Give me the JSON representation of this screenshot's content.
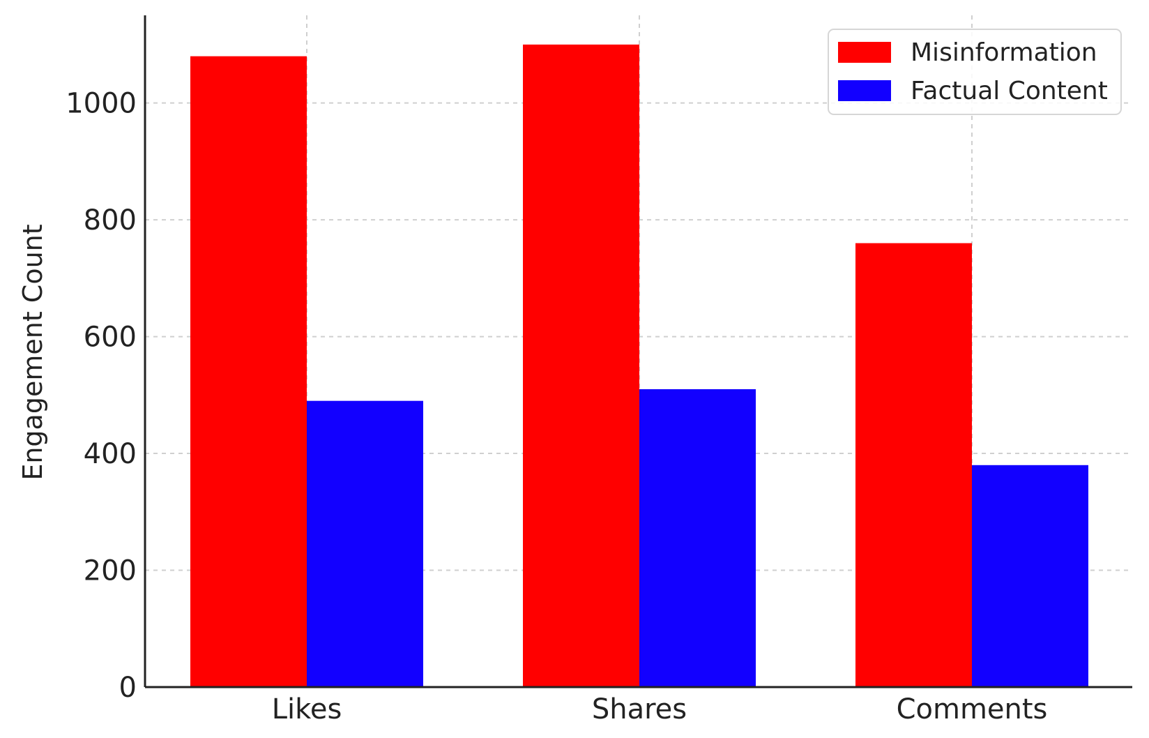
{
  "chart_data": {
    "type": "bar",
    "categories": [
      "Likes",
      "Shares",
      "Comments"
    ],
    "series": [
      {
        "name": "Misinformation",
        "values": [
          1080,
          1100,
          760
        ],
        "color": "#ff0000"
      },
      {
        "name": "Factual Content",
        "values": [
          490,
          510,
          380
        ],
        "color": "#1200ff"
      }
    ],
    "title": "",
    "xlabel": "",
    "ylabel": "Engagement Count",
    "ylim": [
      0,
      1150
    ],
    "yticks": [
      0,
      200,
      400,
      600,
      800,
      1000
    ],
    "grid": true,
    "legend_position": "top-right"
  }
}
